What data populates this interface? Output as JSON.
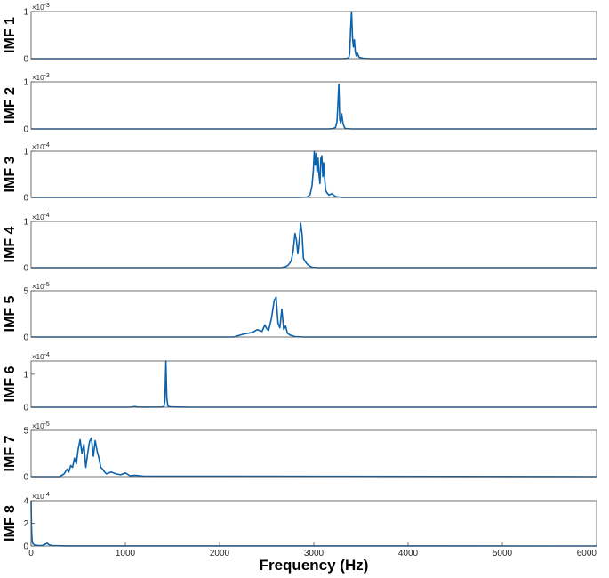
{
  "chart_data": [
    {
      "type": "line",
      "ylabel": "IMF 1",
      "multiplier": "×10",
      "exponent": "-3",
      "yticks": [
        "0",
        "1"
      ],
      "ylim": [
        0,
        1.0
      ],
      "xlim": [
        0,
        6000
      ],
      "x": [
        0,
        3300,
        3350,
        3370,
        3380,
        3390,
        3400,
        3410,
        3420,
        3430,
        3440,
        3450,
        3460,
        3480,
        3520,
        3600,
        6000
      ],
      "values": [
        0,
        0,
        0.005,
        0.02,
        0.1,
        0.6,
        1.0,
        0.45,
        0.25,
        0.4,
        0.15,
        0.06,
        0.12,
        0.03,
        0.01,
        0,
        0
      ]
    },
    {
      "type": "line",
      "ylabel": "IMF 2",
      "multiplier": "×10",
      "exponent": "-3",
      "yticks": [
        "0",
        "1"
      ],
      "ylim": [
        0,
        1.0
      ],
      "xlim": [
        0,
        6000
      ],
      "x": [
        0,
        3150,
        3200,
        3230,
        3245,
        3255,
        3265,
        3275,
        3285,
        3295,
        3310,
        3330,
        3400,
        6000
      ],
      "values": [
        0,
        0,
        0.005,
        0.03,
        0.15,
        0.5,
        0.95,
        0.2,
        0.12,
        0.32,
        0.1,
        0.01,
        0,
        0
      ]
    },
    {
      "type": "line",
      "ylabel": "IMF 3",
      "multiplier": "×10",
      "exponent": "-4",
      "yticks": [
        "0",
        "1"
      ],
      "ylim": [
        0,
        1.0
      ],
      "xlim": [
        0,
        6000
      ],
      "x": [
        0,
        2850,
        2930,
        2960,
        2980,
        2995,
        3005,
        3015,
        3025,
        3035,
        3045,
        3055,
        3065,
        3075,
        3085,
        3095,
        3105,
        3115,
        3125,
        3140,
        3160,
        3190,
        3230,
        3300,
        6000
      ],
      "values": [
        0,
        0,
        0.01,
        0.06,
        0.25,
        0.6,
        1.0,
        0.7,
        0.95,
        0.55,
        0.85,
        0.5,
        0.3,
        0.85,
        0.9,
        0.45,
        0.75,
        0.4,
        0.15,
        0.1,
        0.05,
        0.08,
        0.02,
        0,
        0
      ]
    },
    {
      "type": "line",
      "ylabel": "IMF 4",
      "multiplier": "×10",
      "exponent": "-4",
      "yticks": [
        "0",
        "1"
      ],
      "ylim": [
        0,
        1.0
      ],
      "xlim": [
        0,
        6000
      ],
      "x": [
        0,
        2650,
        2700,
        2730,
        2760,
        2780,
        2800,
        2815,
        2830,
        2845,
        2860,
        2875,
        2890,
        2905,
        2920,
        2940,
        2960,
        2980,
        3050,
        6000
      ],
      "values": [
        0,
        0,
        0.02,
        0.06,
        0.15,
        0.35,
        0.74,
        0.6,
        0.3,
        0.6,
        0.96,
        0.72,
        0.2,
        0.15,
        0.1,
        0.06,
        0.03,
        0.01,
        0,
        0
      ]
    },
    {
      "type": "line",
      "ylabel": "IMF 5",
      "multiplier": "×10",
      "exponent": "-5",
      "yticks": [
        "0",
        "5"
      ],
      "ylim": [
        0,
        5
      ],
      "xlim": [
        0,
        6000
      ],
      "x": [
        0,
        2150,
        2250,
        2350,
        2400,
        2450,
        2480,
        2500,
        2520,
        2550,
        2580,
        2600,
        2620,
        2640,
        2660,
        2680,
        2700,
        2720,
        2750,
        2800,
        2900,
        6000
      ],
      "values": [
        0,
        0,
        0.3,
        0.5,
        0.8,
        0.6,
        1.3,
        0.9,
        0.7,
        2.0,
        4.0,
        4.3,
        1.5,
        1.0,
        3.0,
        0.8,
        1.2,
        0.4,
        0.2,
        0.05,
        0,
        0
      ]
    },
    {
      "type": "line",
      "ylabel": "IMF 6",
      "multiplier": "×10",
      "exponent": "-4",
      "yticks": [
        "0",
        "1"
      ],
      "ylim": [
        0,
        1.4
      ],
      "xlim": [
        0,
        6000
      ],
      "x": [
        0,
        1050,
        1100,
        1130,
        1200,
        1380,
        1400,
        1410,
        1420,
        1430,
        1440,
        1450,
        1460,
        1480,
        1550,
        1700,
        6000
      ],
      "values": [
        0,
        0,
        0.02,
        0.005,
        0.003,
        0.005,
        0.01,
        0.03,
        0.2,
        1.4,
        0.3,
        0.05,
        0.02,
        0.01,
        0.005,
        0,
        0
      ]
    },
    {
      "type": "line",
      "ylabel": "IMF 7",
      "multiplier": "×10",
      "exponent": "-5",
      "yticks": [
        "0",
        "5"
      ],
      "ylim": [
        0,
        5
      ],
      "xlim": [
        0,
        6000
      ],
      "x": [
        0,
        300,
        350,
        380,
        400,
        420,
        440,
        460,
        480,
        500,
        520,
        540,
        560,
        580,
        600,
        620,
        640,
        660,
        680,
        700,
        720,
        740,
        760,
        780,
        800,
        850,
        900,
        950,
        1000,
        1050,
        1100,
        1200,
        6000
      ],
      "values": [
        0,
        0,
        0.3,
        0.8,
        0.5,
        1.2,
        1.0,
        2.0,
        1.4,
        3.0,
        4.0,
        2.5,
        3.5,
        1.0,
        2.5,
        3.8,
        4.2,
        2.2,
        3.9,
        2.8,
        2.0,
        1.0,
        0.8,
        0.5,
        0.3,
        0.5,
        0.3,
        0.2,
        0.4,
        0.1,
        0.15,
        0.05,
        0
      ]
    },
    {
      "type": "line",
      "ylabel": "IMF 8",
      "multiplier": "×10",
      "exponent": "-4",
      "yticks": [
        "0",
        "2",
        "4"
      ],
      "ylim": [
        0,
        4.0
      ],
      "xlim": [
        0,
        6000
      ],
      "x": [
        0,
        2,
        5,
        10,
        20,
        40,
        80,
        120,
        150,
        170,
        190,
        220,
        260,
        400,
        6000
      ],
      "values": [
        4.0,
        3.0,
        1.5,
        0.5,
        0.2,
        0.08,
        0.04,
        0.05,
        0.15,
        0.25,
        0.12,
        0.03,
        0.02,
        0.01,
        0
      ]
    }
  ],
  "xaxis": {
    "label": "Frequency (Hz)",
    "ticks": [
      "0",
      "1000",
      "2000",
      "3000",
      "4000",
      "5000",
      "6000"
    ],
    "tick_values": [
      0,
      1000,
      2000,
      3000,
      4000,
      5000,
      6000
    ]
  },
  "colors": {
    "series": "#0b63ad",
    "frame": "#4d4d4d",
    "text": "#262626"
  }
}
